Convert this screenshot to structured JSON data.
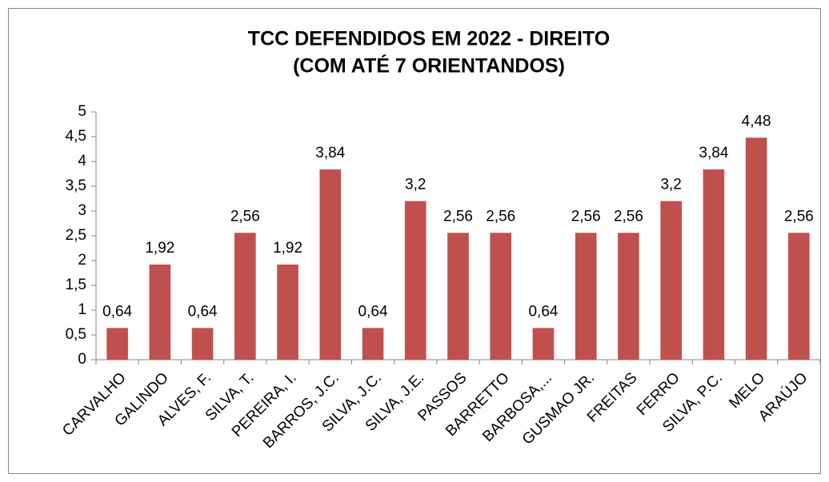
{
  "chart_data": {
    "type": "bar",
    "title": [
      "TCC DEFENDIDOS EM 2022 - DIREITO",
      "(COM ATÉ 7 ORIENTANDOS)"
    ],
    "categories": [
      "CARVALHO",
      "GALINDO",
      "ALVES, F.",
      "SILVA, T.",
      "PEREIRA, I.",
      "BARROS, J.C.",
      "SILVA, J.C.",
      "SILVA, J.E.",
      "PASSOS",
      "BARRETTO",
      "BARBOSA,...",
      "GUSMAO JR.",
      "FREITAS",
      "FERRO",
      "SILVA, P.C.",
      "MELO",
      "ARAÚJO"
    ],
    "values": [
      0.64,
      1.92,
      0.64,
      2.56,
      1.92,
      3.84,
      0.64,
      3.2,
      2.56,
      2.56,
      0.64,
      2.56,
      2.56,
      3.2,
      3.84,
      4.48,
      2.56
    ],
    "value_labels": [
      "0,64",
      "1,92",
      "0,64",
      "2,56",
      "1,92",
      "3,84",
      "0,64",
      "3,2",
      "2,56",
      "2,56",
      "0,64",
      "2,56",
      "2,56",
      "3,2",
      "3,84",
      "4,48",
      "2,56"
    ],
    "color": "#c0504d",
    "ylim": [
      0,
      5
    ],
    "yticks": [
      0,
      {
        "value": 0.5,
        "label": "0,5"
      },
      1,
      {
        "value": 1.5,
        "label": "1,5"
      },
      2,
      {
        "value": 2.5,
        "label": "2,5"
      },
      3,
      {
        "value": 3.5,
        "label": "3,5"
      },
      4,
      {
        "value": 4.5,
        "label": "4,5"
      },
      5
    ],
    "grid": false
  }
}
